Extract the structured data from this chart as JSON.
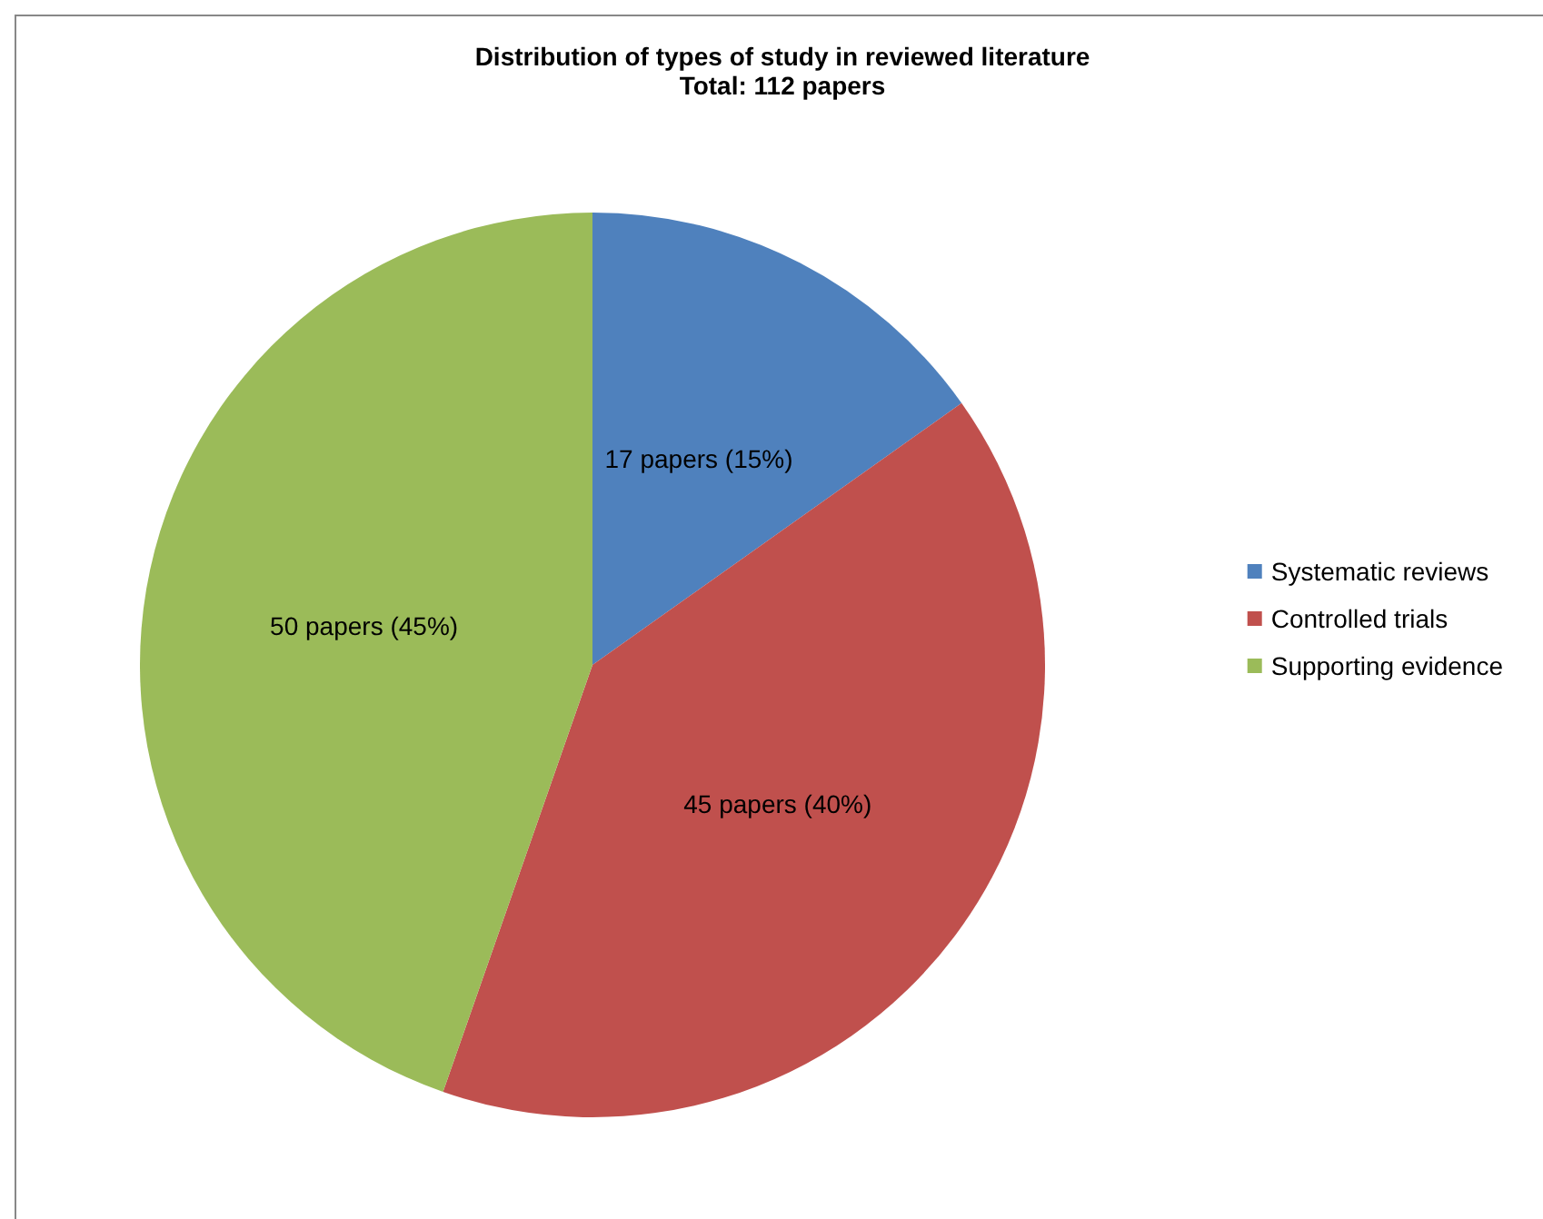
{
  "chart_data": {
    "type": "pie",
    "title": "Distribution of types of study in reviewed literature",
    "subtitle": "Total: 112 papers",
    "categories": [
      "Systematic reviews",
      "Controlled trials",
      "Supporting evidence"
    ],
    "values": [
      17,
      45,
      50
    ],
    "colors": [
      "#4f81bd",
      "#c0504d",
      "#9bbb59"
    ],
    "value_labels": [
      "17 papers (15%)",
      "45 papers (40%)",
      "50 papers (45%)"
    ],
    "legend": "right"
  }
}
